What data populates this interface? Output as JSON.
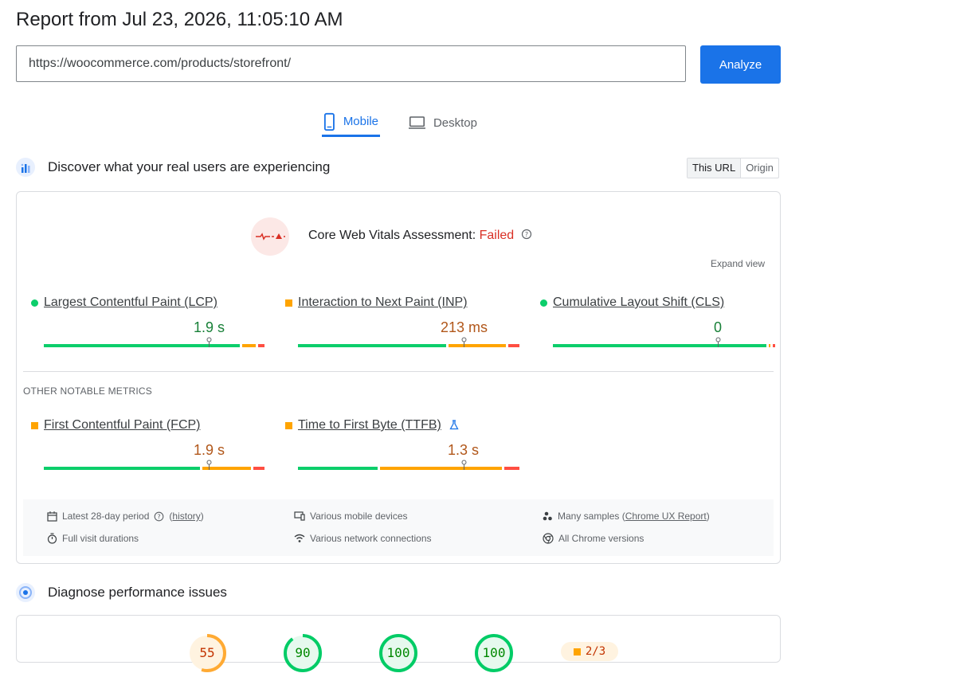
{
  "report": {
    "title": "Report from Jul 23, 2026, 11:05:10 AM",
    "url_value": "https://woocommerce.com/products/storefront/",
    "analyze_label": "Analyze"
  },
  "tabs": [
    {
      "label": "Mobile",
      "icon": "mobile-icon",
      "active": true
    },
    {
      "label": "Desktop",
      "icon": "desktop-icon",
      "active": false
    }
  ],
  "field_section": {
    "title": "Discover what your real users are experiencing",
    "icon": "users-chart-icon",
    "toggle": {
      "this_url": "This URL",
      "origin": "Origin"
    }
  },
  "assessment": {
    "label": "Core Web Vitals Assessment:",
    "status": "Failed",
    "expand_label": "Expand view"
  },
  "core_metrics": [
    {
      "name": "Largest Contentful Paint (LCP)",
      "value": "1.9 s",
      "rating": "good",
      "distribution": {
        "good": 0.89,
        "needs_improvement": 0.07,
        "poor": 0.03
      }
    },
    {
      "name": "Interaction to Next Paint (INP)",
      "value": "213 ms",
      "rating": "average",
      "distribution": {
        "good": 0.68,
        "needs_improvement": 0.27,
        "poor": 0.05
      }
    },
    {
      "name": "Cumulative Layout Shift (CLS)",
      "value": "0",
      "rating": "good",
      "distribution": {
        "good": 0.97,
        "needs_improvement": 0.01,
        "poor": 0.01
      }
    }
  ],
  "other_label": "OTHER NOTABLE METRICS",
  "other_metrics": [
    {
      "name": "First Contentful Paint (FCP)",
      "value": "1.9 s",
      "rating": "average",
      "distribution": {
        "good": 0.71,
        "needs_improvement": 0.23,
        "poor": 0.05
      }
    },
    {
      "name": "Time to First Byte (TTFB)",
      "value": "1.3 s",
      "rating": "average",
      "distribution": {
        "good": 0.37,
        "needs_improvement": 0.56,
        "poor": 0.07
      },
      "experimental_icon": "flask-icon"
    }
  ],
  "info": {
    "period": "Latest 28-day period",
    "history_link": "history",
    "devices": "Various mobile devices",
    "samples_prefix": "Many samples (",
    "samples_link": "Chrome UX Report",
    "samples_suffix": ")",
    "durations": "Full visit durations",
    "network": "Various network connections",
    "chrome": "All Chrome versions"
  },
  "diagnose_section": {
    "title": "Diagnose performance issues",
    "icon": "lighthouse-icon"
  },
  "scores": [
    {
      "value": "55",
      "score": 0.55,
      "color": "#fa3"
    },
    {
      "value": "90",
      "score": 0.9,
      "color": "#0c6"
    },
    {
      "value": "100",
      "score": 1.0,
      "color": "#0c6"
    },
    {
      "value": "100",
      "score": 1.0,
      "color": "#0c6"
    }
  ],
  "pwa_badge": "2/3",
  "colors": {
    "good": "#0cce6b",
    "average": "#ffa400",
    "poor": "#ff4e42",
    "accent": "#1a73e8"
  }
}
